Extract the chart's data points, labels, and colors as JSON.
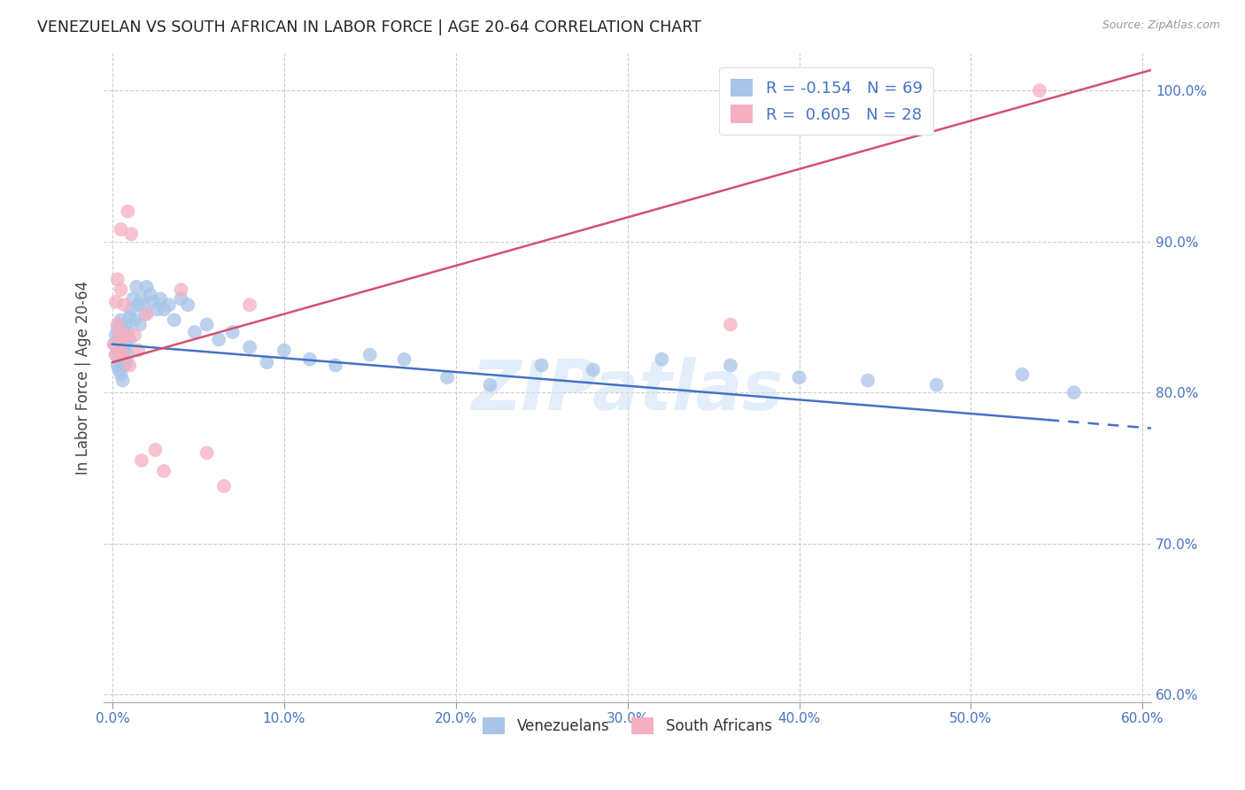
{
  "title": "VENEZUELAN VS SOUTH AFRICAN IN LABOR FORCE | AGE 20-64 CORRELATION CHART",
  "source": "Source: ZipAtlas.com",
  "ylabel": "In Labor Force | Age 20-64",
  "xlim": [
    -0.005,
    0.605
  ],
  "ylim": [
    0.595,
    1.025
  ],
  "xticks": [
    0.0,
    0.1,
    0.2,
    0.3,
    0.4,
    0.5,
    0.6
  ],
  "xtick_labels": [
    "0.0%",
    "10.0%",
    "20.0%",
    "30.0%",
    "40.0%",
    "50.0%",
    "60.0%"
  ],
  "yticks": [
    0.6,
    0.7,
    0.8,
    0.9,
    1.0
  ],
  "ytick_labels": [
    "60.0%",
    "70.0%",
    "80.0%",
    "90.0%",
    "100.0%"
  ],
  "legend_r_venezuelan": "-0.154",
  "legend_n_venezuelan": "69",
  "legend_r_south_african": "0.605",
  "legend_n_south_african": "28",
  "venezuelan_color": "#a8c4e8",
  "south_african_color": "#f5afc0",
  "regression_line_venezuelan_color": "#4472c4",
  "regression_line_south_african_color": "#d45070",
  "watermark": "ZIPatlas",
  "blue_intercept": 0.832,
  "blue_slope": -0.092,
  "pink_intercept": 0.82,
  "pink_slope": 0.32,
  "blue_dots_x": [
    0.001,
    0.002,
    0.002,
    0.003,
    0.003,
    0.003,
    0.004,
    0.004,
    0.004,
    0.004,
    0.005,
    0.005,
    0.005,
    0.005,
    0.006,
    0.006,
    0.006,
    0.006,
    0.007,
    0.007,
    0.007,
    0.008,
    0.008,
    0.008,
    0.009,
    0.009,
    0.01,
    0.01,
    0.011,
    0.012,
    0.013,
    0.014,
    0.015,
    0.016,
    0.017,
    0.018,
    0.019,
    0.02,
    0.022,
    0.024,
    0.026,
    0.028,
    0.03,
    0.033,
    0.036,
    0.04,
    0.044,
    0.048,
    0.055,
    0.062,
    0.07,
    0.08,
    0.09,
    0.1,
    0.115,
    0.13,
    0.15,
    0.17,
    0.195,
    0.22,
    0.25,
    0.28,
    0.32,
    0.36,
    0.4,
    0.44,
    0.48,
    0.53,
    0.56
  ],
  "blue_dots_y": [
    0.832,
    0.838,
    0.825,
    0.842,
    0.828,
    0.818,
    0.845,
    0.835,
    0.822,
    0.815,
    0.848,
    0.838,
    0.826,
    0.812,
    0.842,
    0.832,
    0.82,
    0.808,
    0.838,
    0.828,
    0.818,
    0.845,
    0.832,
    0.82,
    0.84,
    0.825,
    0.85,
    0.835,
    0.855,
    0.862,
    0.848,
    0.87,
    0.858,
    0.845,
    0.862,
    0.858,
    0.852,
    0.87,
    0.865,
    0.86,
    0.855,
    0.862,
    0.855,
    0.858,
    0.848,
    0.862,
    0.858,
    0.84,
    0.845,
    0.835,
    0.84,
    0.83,
    0.82,
    0.828,
    0.822,
    0.818,
    0.825,
    0.822,
    0.81,
    0.805,
    0.818,
    0.815,
    0.822,
    0.818,
    0.81,
    0.808,
    0.805,
    0.812,
    0.8
  ],
  "pink_dots_x": [
    0.001,
    0.002,
    0.002,
    0.003,
    0.003,
    0.004,
    0.004,
    0.005,
    0.005,
    0.006,
    0.006,
    0.007,
    0.008,
    0.009,
    0.01,
    0.011,
    0.013,
    0.015,
    0.017,
    0.02,
    0.025,
    0.03,
    0.04,
    0.055,
    0.065,
    0.08,
    0.36,
    0.54
  ],
  "pink_dots_y": [
    0.832,
    0.825,
    0.86,
    0.845,
    0.875,
    0.828,
    0.84,
    0.868,
    0.908,
    0.825,
    0.835,
    0.858,
    0.838,
    0.92,
    0.818,
    0.905,
    0.838,
    0.828,
    0.755,
    0.852,
    0.762,
    0.748,
    0.868,
    0.76,
    0.738,
    0.858,
    0.845,
    1.0
  ]
}
